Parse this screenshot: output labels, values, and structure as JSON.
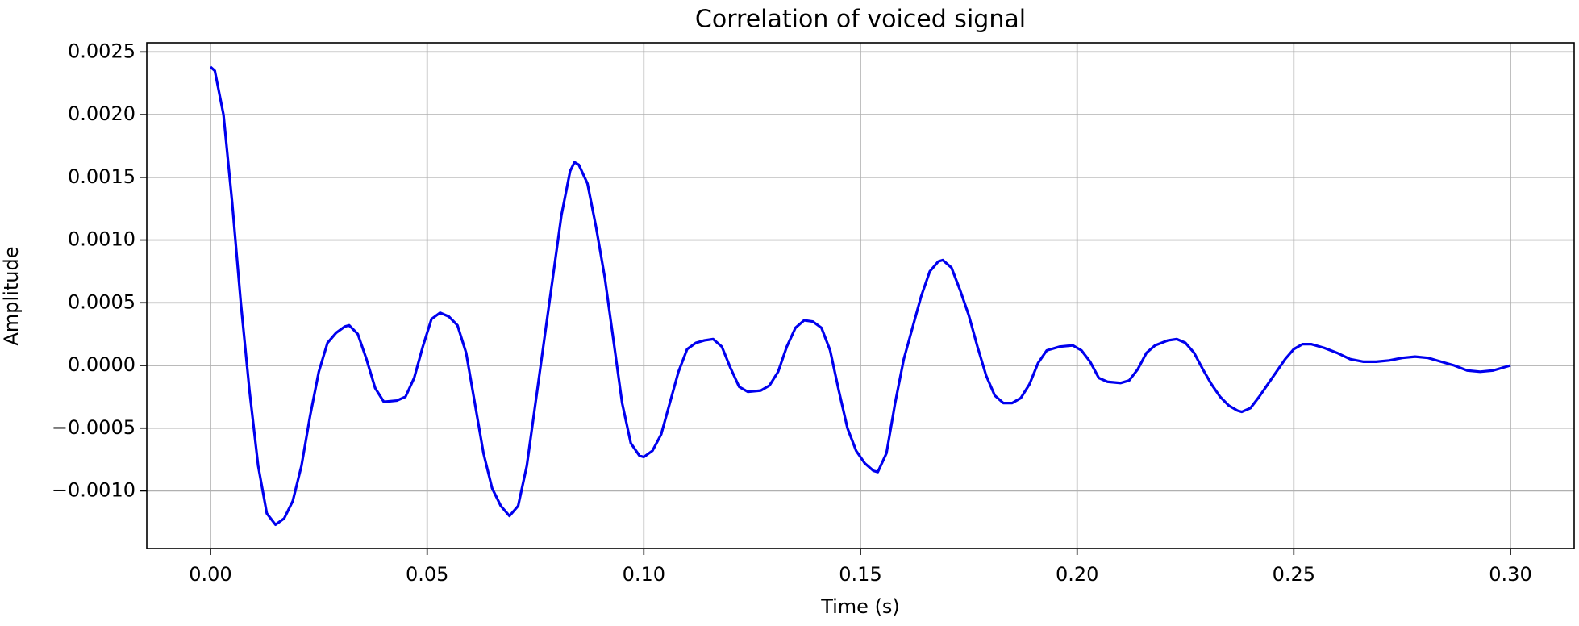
{
  "chart_data": {
    "type": "line",
    "title": "Correlation of voiced signal",
    "xlabel": "Time (s)",
    "ylabel": "Amplitude",
    "grid": true,
    "xlim": [
      -0.0147,
      0.3147
    ],
    "ylim": [
      -0.00146,
      0.002573
    ],
    "xticks": [
      {
        "value": 0,
        "label": "0.00"
      },
      {
        "value": 0.05,
        "label": "0.05"
      },
      {
        "value": 0.1,
        "label": "0.10"
      },
      {
        "value": 0.15,
        "label": "0.15"
      },
      {
        "value": 0.2,
        "label": "0.20"
      },
      {
        "value": 0.25,
        "label": "0.25"
      },
      {
        "value": 0.3,
        "label": "0.30"
      }
    ],
    "yticks": [
      {
        "value": -0.001,
        "label": "−0.0010"
      },
      {
        "value": -0.0005,
        "label": "−0.0005"
      },
      {
        "value": 0,
        "label": "0.0000"
      },
      {
        "value": 0.0005,
        "label": "0.0005"
      },
      {
        "value": 0.001,
        "label": "0.0010"
      },
      {
        "value": 0.0015,
        "label": "0.0015"
      },
      {
        "value": 0.002,
        "label": "0.0020"
      },
      0.0025
    ],
    "x": [
      0,
      0.001,
      0.003,
      0.005,
      0.007,
      0.009,
      0.011,
      0.013,
      0.015,
      0.017,
      0.019,
      0.021,
      0.023,
      0.025,
      0.027,
      0.029,
      0.031,
      0.032,
      0.034,
      0.036,
      0.038,
      0.04,
      0.043,
      0.045,
      0.047,
      0.049,
      0.051,
      0.053,
      0.055,
      0.057,
      0.059,
      0.061,
      0.063,
      0.065,
      0.067,
      0.069,
      0.071,
      0.073,
      0.075,
      0.077,
      0.079,
      0.081,
      0.083,
      0.084,
      0.085,
      0.087,
      0.089,
      0.091,
      0.093,
      0.095,
      0.097,
      0.099,
      0.1,
      0.102,
      0.104,
      0.106,
      0.108,
      0.11,
      0.112,
      0.114,
      0.116,
      0.118,
      0.12,
      0.122,
      0.124,
      0.127,
      0.129,
      0.131,
      0.133,
      0.135,
      0.137,
      0.139,
      0.141,
      0.143,
      0.145,
      0.147,
      0.149,
      0.151,
      0.153,
      0.154,
      0.156,
      0.158,
      0.16,
      0.162,
      0.164,
      0.166,
      0.168,
      0.169,
      0.171,
      0.173,
      0.175,
      0.177,
      0.179,
      0.181,
      0.183,
      0.185,
      0.187,
      0.189,
      0.191,
      0.193,
      0.196,
      0.199,
      0.201,
      0.203,
      0.205,
      0.207,
      0.21,
      0.212,
      0.214,
      0.216,
      0.218,
      0.221,
      0.223,
      0.225,
      0.227,
      0.229,
      0.231,
      0.233,
      0.235,
      0.237,
      0.238,
      0.24,
      0.242,
      0.244,
      0.246,
      0.248,
      0.25,
      0.252,
      0.254,
      0.257,
      0.26,
      0.263,
      0.266,
      0.269,
      0.272,
      0.275,
      0.278,
      0.281,
      0.284,
      0.287,
      0.29,
      0.293,
      0.296,
      0.3
    ],
    "series": [
      {
        "color": "#0000ee",
        "values": [
          0.00238,
          0.00235,
          0.002,
          0.0013,
          0.0005,
          -0.0002,
          -0.0008,
          -0.00118,
          -0.00127,
          -0.00122,
          -0.00108,
          -0.0008,
          -0.0004,
          -5e-05,
          0.00018,
          0.00026,
          0.00031,
          0.00032,
          0.00025,
          5e-05,
          -0.00018,
          -0.00029,
          -0.00028,
          -0.00025,
          -0.0001,
          0.00015,
          0.00037,
          0.00042,
          0.00039,
          0.00032,
          0.0001,
          -0.0003,
          -0.0007,
          -0.00098,
          -0.00112,
          -0.0012,
          -0.00112,
          -0.0008,
          -0.0003,
          0.0002,
          0.0007,
          0.0012,
          0.00155,
          0.00162,
          0.0016,
          0.00145,
          0.0011,
          0.0007,
          0.0002,
          -0.0003,
          -0.00062,
          -0.00072,
          -0.00073,
          -0.00068,
          -0.00055,
          -0.0003,
          -5e-05,
          0.00013,
          0.00018,
          0.0002,
          0.00021,
          0.00015,
          -2e-05,
          -0.00017,
          -0.00021,
          -0.0002,
          -0.00016,
          -5e-05,
          0.00015,
          0.0003,
          0.00036,
          0.00035,
          0.0003,
          0.00012,
          -0.0002,
          -0.0005,
          -0.00068,
          -0.00078,
          -0.00084,
          -0.00085,
          -0.0007,
          -0.0003,
          5e-05,
          0.0003,
          0.00055,
          0.00075,
          0.00083,
          0.00084,
          0.00078,
          0.0006,
          0.0004,
          0.00015,
          -8e-05,
          -0.00024,
          -0.0003,
          -0.0003,
          -0.00026,
          -0.00015,
          2e-05,
          0.00012,
          0.00015,
          0.00016,
          0.00012,
          3e-05,
          -0.0001,
          -0.00013,
          -0.00014,
          -0.00012,
          -3e-05,
          0.0001,
          0.00016,
          0.0002,
          0.00021,
          0.00018,
          0.0001,
          -3e-05,
          -0.00015,
          -0.00025,
          -0.00032,
          -0.00036,
          -0.00037,
          -0.00034,
          -0.00025,
          -0.00015,
          -5e-05,
          5e-05,
          0.00013,
          0.00017,
          0.00017,
          0.00014,
          0.0001,
          5e-05,
          3e-05,
          3e-05,
          4e-05,
          6e-05,
          7e-05,
          6e-05,
          3e-05,
          0,
          -4e-05,
          -5e-05,
          -4e-05,
          0
        ]
      }
    ]
  }
}
